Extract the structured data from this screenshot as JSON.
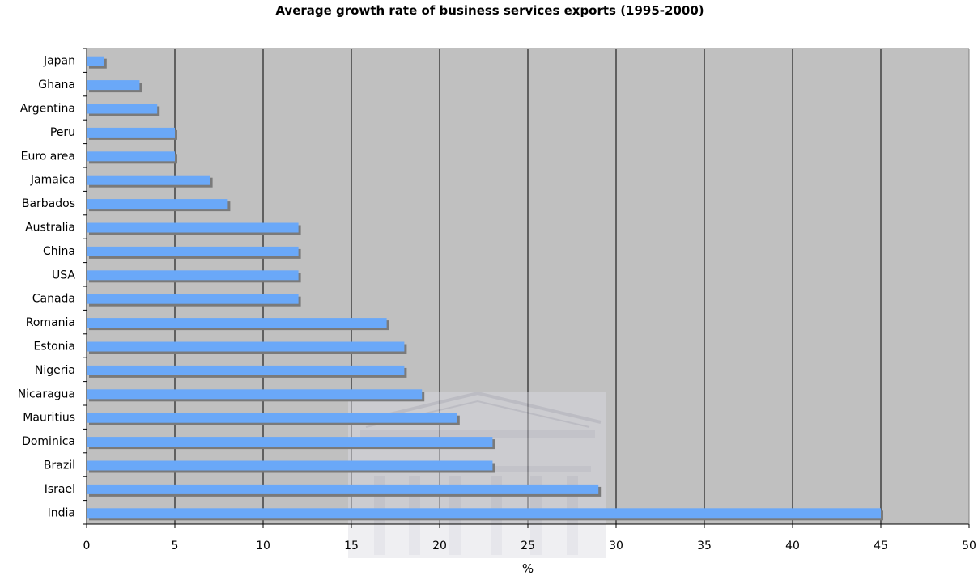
{
  "colors": {
    "plot_background": "#c0c0c0",
    "bar": "#6aa8f8",
    "bar_shadow": "#7a7a7a",
    "gridline": "#000000",
    "watermark": "#d8d8de"
  },
  "chart_data": {
    "type": "bar",
    "orientation": "horizontal",
    "title": "Average growth rate of business services exports (1995-2000)",
    "xlabel": "%",
    "ylabel": "",
    "xlim": [
      0,
      50
    ],
    "x_ticks": [
      0,
      5,
      10,
      15,
      20,
      25,
      30,
      35,
      40,
      45,
      50
    ],
    "grid": true,
    "legend": "none",
    "categories": [
      "Japan",
      "Ghana",
      "Argentina",
      "Peru",
      "Euro area",
      "Jamaica",
      "Barbados",
      "Australia",
      "China",
      "USA",
      "Canada",
      "Romania",
      "Estonia",
      "Nigeria",
      "Nicaragua",
      "Mauritius",
      "Dominica",
      "Brazil",
      "Israel",
      "India"
    ],
    "values": [
      1,
      3,
      4,
      5,
      5,
      7,
      8,
      12,
      12,
      12,
      12,
      17,
      18,
      18,
      19,
      21,
      23,
      23,
      29,
      45
    ]
  }
}
